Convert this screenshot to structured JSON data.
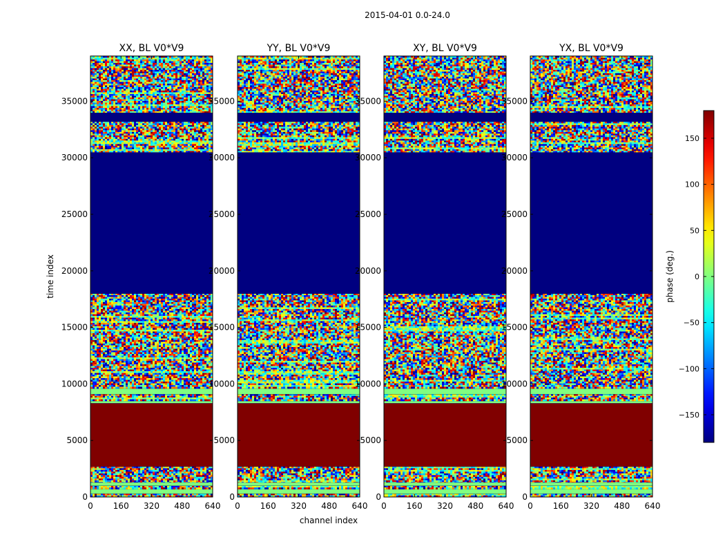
{
  "figure": {
    "suptitle": "2015-04-01 0.0-24.0",
    "xlabel": "channel index",
    "ylabel": "time index",
    "colorbar_label": "phase (deg.)"
  },
  "chart_data": {
    "type": "heatmap",
    "xlim": [
      0,
      640
    ],
    "ylim": [
      0,
      39000
    ],
    "x_ticks": [
      0,
      160,
      320,
      480,
      640
    ],
    "y_ticks": [
      0,
      5000,
      10000,
      15000,
      20000,
      25000,
      30000,
      35000
    ],
    "colorbar": {
      "vmin": -180,
      "vmax": 180,
      "ticks": [
        -150,
        -100,
        -50,
        0,
        50,
        100,
        150
      ],
      "tick_labels": [
        "−150",
        "−100",
        "−50",
        "0",
        "50",
        "100",
        "150"
      ],
      "colormap": "jet"
    },
    "bands": [
      {
        "from": 0,
        "to": 300,
        "kind": "noise"
      },
      {
        "from": 300,
        "to": 700,
        "kind": "flat",
        "phase": 0
      },
      {
        "from": 700,
        "to": 1000,
        "kind": "noise"
      },
      {
        "from": 1000,
        "to": 1300,
        "kind": "flat",
        "phase": 0
      },
      {
        "from": 1300,
        "to": 2700,
        "kind": "noise"
      },
      {
        "from": 2700,
        "to": 8300,
        "kind": "flat",
        "phase": 180
      },
      {
        "from": 8300,
        "to": 8500,
        "kind": "flat",
        "phase": 0
      },
      {
        "from": 8500,
        "to": 9100,
        "kind": "noise"
      },
      {
        "from": 9100,
        "to": 9600,
        "kind": "flat",
        "phase": 0
      },
      {
        "from": 9600,
        "to": 18000,
        "kind": "noise"
      },
      {
        "from": 18000,
        "to": 30500,
        "kind": "flat",
        "phase": -180
      },
      {
        "from": 30500,
        "to": 33200,
        "kind": "noise"
      },
      {
        "from": 33200,
        "to": 34000,
        "kind": "flat",
        "phase": -180
      },
      {
        "from": 34000,
        "to": 39000,
        "kind": "noise"
      }
    ],
    "panels": [
      {
        "title": "XX, BL V0*V9",
        "key": "XX"
      },
      {
        "title": "YY, BL V0*V9",
        "key": "YY"
      },
      {
        "title": "XY, BL V0*V9",
        "key": "XY"
      },
      {
        "title": "YX, BL V0*V9",
        "key": "YX"
      }
    ]
  }
}
